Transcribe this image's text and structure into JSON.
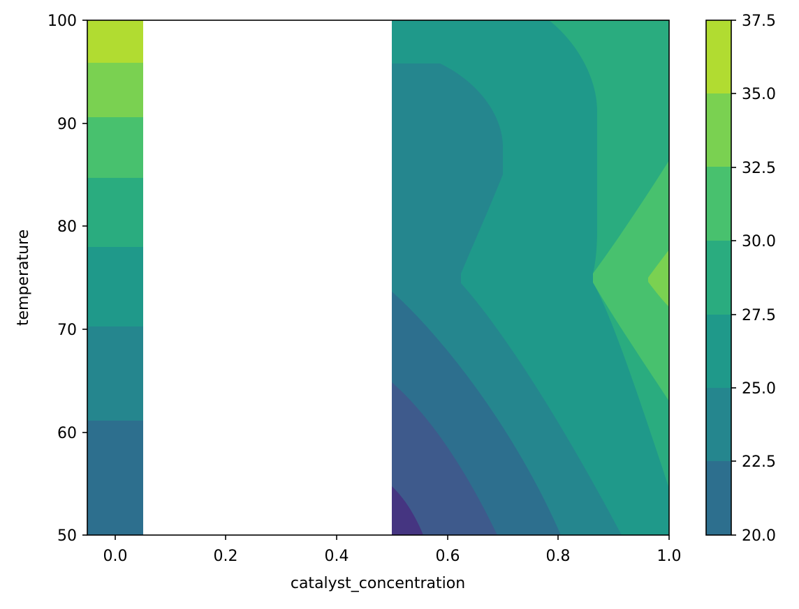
{
  "chart_data": {
    "type": "heatmap",
    "subtype": "filled-contour",
    "title": "",
    "xlabel": "catalyst_concentration",
    "ylabel": "temperature",
    "xlim": [
      -0.05,
      1.0
    ],
    "ylim": [
      50,
      100
    ],
    "x_ticks": [
      "0.0",
      "0.2",
      "0.4",
      "0.6",
      "0.8",
      "1.0"
    ],
    "y_ticks": [
      "50",
      "60",
      "70",
      "80",
      "90",
      "100"
    ],
    "grid": false,
    "colorbar": {
      "ticks": [
        "20.0",
        "22.5",
        "25.0",
        "27.5",
        "30.0",
        "32.5",
        "35.0",
        "37.5"
      ],
      "range": [
        20.0,
        37.5
      ],
      "colormap": "viridis"
    },
    "band_colors": [
      {
        "range": [
          17.5,
          20.0
        ],
        "color": "#453581"
      },
      {
        "range": [
          20.0,
          22.5
        ],
        "color": "#2d6f8e"
      },
      {
        "range": [
          22.5,
          25.0
        ],
        "color": "#25868e"
      },
      {
        "range": [
          25.0,
          27.5
        ],
        "color": "#1f998a"
      },
      {
        "range": [
          27.5,
          30.0
        ],
        "color": "#2aac7f"
      },
      {
        "range": [
          30.0,
          32.5
        ],
        "color": "#48c16e"
      },
      {
        "range": [
          32.5,
          35.0
        ],
        "color": "#7ad151"
      },
      {
        "range": [
          35.0,
          37.5
        ],
        "color": "#b1dc31"
      }
    ],
    "regions": [
      {
        "x_range": [
          -0.05,
          0.05
        ],
        "bands_by_temperature": [
          {
            "y": [
              50.0,
              61.2
            ],
            "band": "20.0-22.5"
          },
          {
            "y": [
              61.2,
              70.3
            ],
            "band": "22.5-25.0"
          },
          {
            "y": [
              70.3,
              78.0
            ],
            "band": "25.0-27.5"
          },
          {
            "y": [
              78.0,
              84.7
            ],
            "band": "27.5-30.0"
          },
          {
            "y": [
              84.7,
              90.6
            ],
            "band": "30.0-32.5"
          },
          {
            "y": [
              90.6,
              95.8
            ],
            "band": "32.5-35.0"
          },
          {
            "y": [
              95.8,
              100.0
            ],
            "band": "35.0-37.5"
          }
        ]
      },
      {
        "x_range": [
          0.5,
          1.0
        ],
        "min": {
          "value_band": "17.5-20.0",
          "at": [
            0.5,
            50
          ]
        },
        "max": {
          "value_band": "32.5-35.0",
          "at": [
            1.0,
            75
          ]
        }
      }
    ]
  }
}
